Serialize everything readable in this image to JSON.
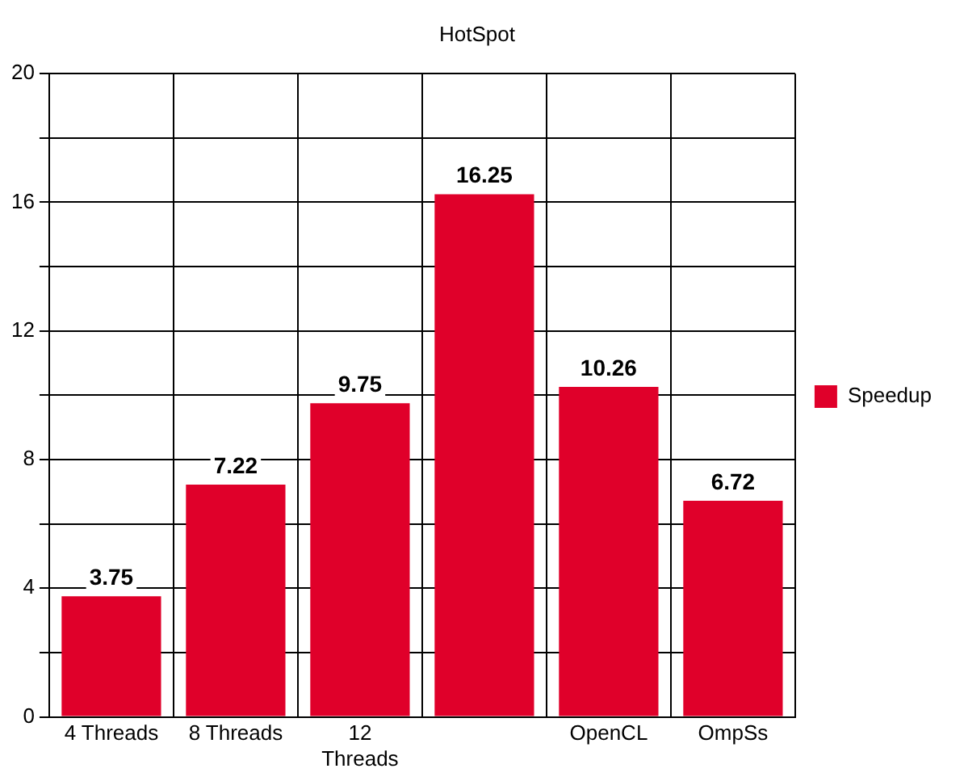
{
  "chart_data": {
    "type": "bar",
    "title": "HotSpot",
    "categories": [
      "4 Threads",
      "8 Threads",
      "12 Threads",
      null,
      "OpenCL",
      "OmpSs"
    ],
    "series": [
      {
        "name": "Speedup",
        "color": "#e0002a",
        "values": [
          3.75,
          7.22,
          9.75,
          16.25,
          10.26,
          6.72
        ]
      }
    ],
    "ylim": [
      0,
      20
    ],
    "yticks": [
      0,
      {
        "value": 2,
        "label": null
      },
      4,
      {
        "value": 6,
        "label": null
      },
      8,
      {
        "value": 10,
        "label": null
      },
      12,
      {
        "value": 14,
        "label": null
      },
      16,
      {
        "value": 18,
        "label": null
      },
      20
    ],
    "grid": true,
    "legend": "right",
    "data_labels": true
  }
}
